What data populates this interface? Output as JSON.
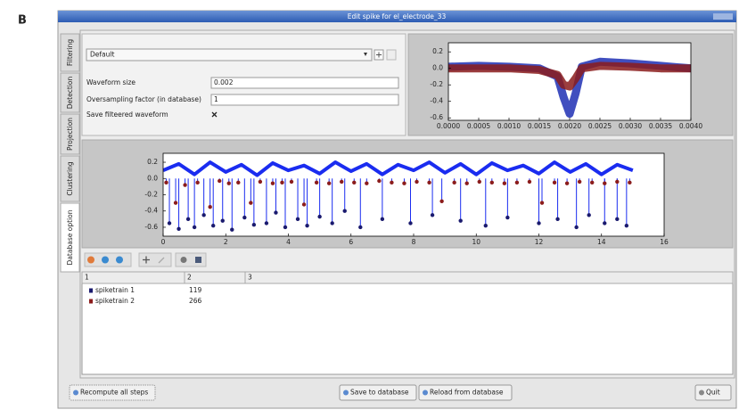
{
  "label": "B",
  "window": {
    "title": "Edit spike for el_electrode_33"
  },
  "tabs": [
    "Filtering",
    "Detection",
    "Projection",
    "Clustering",
    "Database option"
  ],
  "settings": {
    "preset": "Default",
    "fields": [
      {
        "label": "Waveform size",
        "value": "0.002"
      },
      {
        "label": "Oversampling factor (in database)",
        "value": "1"
      }
    ],
    "checkbox": "Save filteered waveform"
  },
  "chart_data": [
    {
      "type": "line",
      "x": [
        0,
        0.0005,
        0.001,
        0.0015,
        0.0018,
        0.0019,
        0.002,
        0.0021,
        0.0022,
        0.0025,
        0.003,
        0.0035,
        0.004
      ],
      "series": [
        {
          "color": "#1f2fb4",
          "values": [
            0.02,
            0.03,
            0.02,
            0.0,
            -0.1,
            -0.35,
            -0.55,
            -0.3,
            0.02,
            0.08,
            0.06,
            0.03,
            0.0
          ]
        },
        {
          "color": "#8b1c1c",
          "values": [
            0.0,
            0.0,
            0.0,
            -0.02,
            -0.08,
            -0.2,
            -0.22,
            -0.12,
            0.0,
            0.03,
            0.02,
            0.0,
            0.0
          ]
        }
      ],
      "xlim": [
        0,
        0.004
      ],
      "ylim": [
        -0.63,
        0.31
      ],
      "xticks": [
        {
          "value": 0,
          "label": "0.0000"
        },
        0.0005,
        {
          "value": 0.001,
          "label": "0.0010"
        },
        0.0015,
        {
          "value": 0.002,
          "label": "0.0020"
        },
        0.0025,
        {
          "value": 0.003,
          "label": "0.0030"
        },
        0.0035,
        {
          "value": 0.004,
          "label": "0.0040"
        }
      ],
      "yticks": [
        0.2,
        {
          "value": 0,
          "label": "0.0"
        },
        -0.2,
        -0.4,
        -0.6
      ]
    },
    {
      "type": "scatter",
      "series": [
        {
          "kind": "line",
          "color": "#1a2cf0",
          "x": [
            0,
            0.5,
            1,
            1.5,
            2,
            2.5,
            3,
            3.5,
            4,
            4.5,
            5,
            5.5,
            6,
            6.5,
            7,
            7.5,
            8,
            8.5,
            9,
            9.5,
            10,
            10.5,
            11,
            11.5,
            12,
            12.5,
            13,
            13.5,
            14,
            14.5,
            15
          ],
          "values": [
            0.1,
            0.18,
            0.05,
            0.2,
            0.08,
            0.17,
            0.04,
            0.19,
            0.1,
            0.16,
            0.06,
            0.2,
            0.09,
            0.18,
            0.05,
            0.17,
            0.1,
            0.2,
            0.07,
            0.18,
            0.05,
            0.19,
            0.1,
            0.16,
            0.06,
            0.2,
            0.08,
            0.18,
            0.05,
            0.17,
            0.1
          ]
        },
        {
          "kind": "scatter",
          "color": "#1a1a6e",
          "x": [
            0.2,
            0.5,
            0.8,
            1.0,
            1.3,
            1.6,
            1.9,
            2.2,
            2.6,
            2.9,
            3.3,
            3.6,
            3.9,
            4.3,
            4.6,
            5.0,
            5.4,
            5.8,
            6.3,
            7.0,
            7.9,
            8.6,
            9.5,
            10.3,
            11.0,
            12.0,
            12.6,
            13.2,
            13.6,
            14.1,
            14.5,
            14.8
          ],
          "values": [
            -0.55,
            -0.62,
            -0.5,
            -0.6,
            -0.45,
            -0.58,
            -0.52,
            -0.63,
            -0.48,
            -0.57,
            -0.55,
            -0.42,
            -0.6,
            -0.5,
            -0.58,
            -0.47,
            -0.55,
            -0.4,
            -0.6,
            -0.5,
            -0.55,
            -0.45,
            -0.52,
            -0.58,
            -0.48,
            -0.55,
            -0.5,
            -0.6,
            -0.45,
            -0.55,
            -0.5,
            -0.58
          ]
        },
        {
          "kind": "scatter",
          "color": "#8b1c1c",
          "x": [
            0.1,
            0.4,
            0.7,
            1.1,
            1.5,
            1.8,
            2.1,
            2.4,
            2.8,
            3.1,
            3.5,
            3.8,
            4.1,
            4.5,
            4.9,
            5.3,
            5.7,
            6.1,
            6.5,
            6.9,
            7.3,
            7.7,
            8.1,
            8.5,
            8.9,
            9.3,
            9.7,
            10.1,
            10.5,
            10.9,
            11.3,
            11.7,
            12.1,
            12.5,
            12.9,
            13.3,
            13.7,
            14.1,
            14.5,
            14.9
          ],
          "values": [
            -0.05,
            -0.3,
            -0.08,
            -0.05,
            -0.35,
            -0.03,
            -0.06,
            -0.05,
            -0.3,
            -0.04,
            -0.06,
            -0.05,
            -0.04,
            -0.32,
            -0.05,
            -0.06,
            -0.04,
            -0.05,
            -0.06,
            -0.03,
            -0.05,
            -0.06,
            -0.04,
            -0.05,
            -0.28,
            -0.05,
            -0.06,
            -0.04,
            -0.05,
            -0.06,
            -0.05,
            -0.04,
            -0.3,
            -0.05,
            -0.06,
            -0.04,
            -0.05,
            -0.06,
            -0.04,
            -0.05
          ]
        }
      ],
      "xlim": [
        0,
        16
      ],
      "ylim": [
        -0.71,
        0.31
      ],
      "xticks": [
        0,
        2,
        4,
        6,
        8,
        10,
        12,
        14,
        16
      ],
      "yticks": [
        0.2,
        {
          "value": 0,
          "label": "0.0"
        },
        -0.2,
        -0.4,
        -0.6
      ]
    }
  ],
  "table": {
    "header": [
      "1",
      "2",
      "3"
    ],
    "rows": [
      {
        "name": "spiketrain 1",
        "color": "#1a1a6e",
        "count": "119"
      },
      {
        "name": "spiketrain 2",
        "color": "#8b1c1c",
        "count": "266"
      }
    ]
  },
  "buttons": [
    "Recompute all steps",
    "Save to database",
    "Reload from database",
    "Quit"
  ]
}
